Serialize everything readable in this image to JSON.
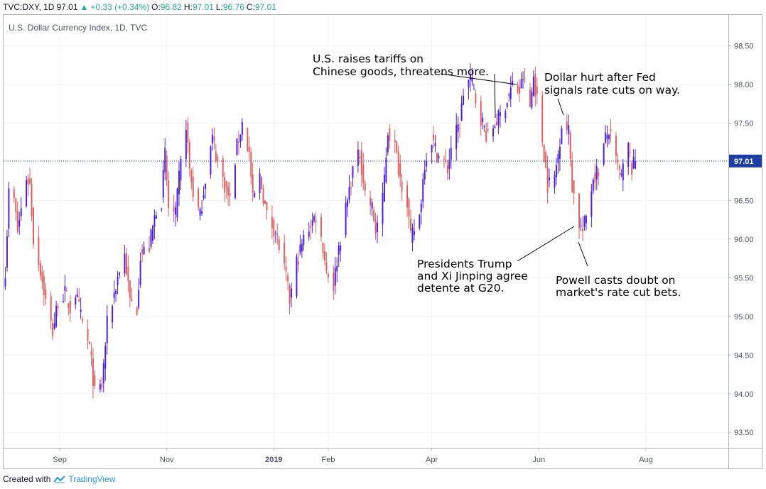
{
  "header": {
    "symbol": "TVC:DXY, 1D",
    "last": "97.01",
    "change": "+0.33 (+0.34%)",
    "o_label": "O:",
    "o": "96.82",
    "h_label": "H:",
    "h": "97.01",
    "l_label": "L:",
    "l": "96.76",
    "c_label": "C:",
    "c": "97.01"
  },
  "footer": {
    "created_with": "Created with",
    "brand": "TradingView"
  },
  "colors": {
    "up": "#4b20e6",
    "down": "#e05f5f",
    "last_price": "#1d3fa3",
    "grid": "#eef0f3",
    "brand": "#2196f3"
  },
  "chart_data": {
    "type": "candlestick",
    "title": "U.S. Dollar Currency Index, 1D, TVC",
    "ylim": [
      93.3,
      98.9
    ],
    "yticks": [
      93.5,
      94.0,
      94.5,
      95.0,
      95.5,
      96.0,
      96.5,
      97.0,
      97.5,
      98.0,
      98.5
    ],
    "ytick_labels": [
      "93.50",
      "94.00",
      "94.50",
      "95.00",
      "95.50",
      "96.00",
      "96.50",
      "97.00",
      "97.50",
      "98.00",
      "98.50"
    ],
    "last_price": 97.01,
    "last_price_label": "97.01",
    "xlim": [
      "2018-07-31",
      "2019-09-17"
    ],
    "xticks": [
      {
        "date": "2018-09-01",
        "label": "Sep"
      },
      {
        "date": "2018-11-01",
        "label": "Nov"
      },
      {
        "date": "2019-01-01",
        "label": "2019"
      },
      {
        "date": "2019-02-01",
        "label": "Feb"
      },
      {
        "date": "2019-04-01",
        "label": "Apr"
      },
      {
        "date": "2019-06-01",
        "label": "Jun"
      },
      {
        "date": "2019-08-01",
        "label": "Aug"
      }
    ],
    "anchors": [
      [
        "2018-08-01",
        95.6
      ],
      [
        "2018-08-03",
        96.6
      ],
      [
        "2018-08-06",
        96.5
      ],
      [
        "2018-08-08",
        96.1
      ],
      [
        "2018-08-13",
        96.8
      ],
      [
        "2018-08-15",
        96.7
      ],
      [
        "2018-08-17",
        96.0
      ],
      [
        "2018-08-21",
        95.6
      ],
      [
        "2018-08-24",
        95.2
      ],
      [
        "2018-08-28",
        94.8
      ],
      [
        "2018-08-31",
        95.2
      ],
      [
        "2018-09-04",
        95.3
      ],
      [
        "2018-09-07",
        95.1
      ],
      [
        "2018-09-10",
        95.3
      ],
      [
        "2018-09-14",
        94.9
      ],
      [
        "2018-09-18",
        94.6
      ],
      [
        "2018-09-21",
        94.0
      ],
      [
        "2018-09-25",
        94.1
      ],
      [
        "2018-09-28",
        94.9
      ],
      [
        "2018-10-02",
        95.3
      ],
      [
        "2018-10-05",
        95.6
      ],
      [
        "2018-10-08",
        95.8
      ],
      [
        "2018-10-11",
        95.2
      ],
      [
        "2018-10-15",
        95.1
      ],
      [
        "2018-10-17",
        95.8
      ],
      [
        "2018-10-22",
        95.9
      ],
      [
        "2018-10-26",
        96.4
      ],
      [
        "2018-10-29",
        96.5
      ],
      [
        "2018-10-31",
        97.1
      ],
      [
        "2018-11-02",
        96.4
      ],
      [
        "2018-11-06",
        96.3
      ],
      [
        "2018-11-08",
        96.8
      ],
      [
        "2018-11-12",
        97.5
      ],
      [
        "2018-11-14",
        96.9
      ],
      [
        "2018-11-16",
        96.6
      ],
      [
        "2018-11-20",
        96.3
      ],
      [
        "2018-11-23",
        96.8
      ],
      [
        "2018-11-27",
        97.3
      ],
      [
        "2018-11-30",
        97.0
      ],
      [
        "2018-12-04",
        96.7
      ],
      [
        "2018-12-07",
        96.5
      ],
      [
        "2018-12-11",
        97.2
      ],
      [
        "2018-12-14",
        97.5
      ],
      [
        "2018-12-18",
        97.1
      ],
      [
        "2018-12-20",
        96.5
      ],
      [
        "2018-12-24",
        96.8
      ],
      [
        "2018-12-28",
        96.3
      ],
      [
        "2019-01-02",
        96.1
      ],
      [
        "2019-01-04",
        95.9
      ],
      [
        "2019-01-08",
        95.5
      ],
      [
        "2019-01-10",
        95.2
      ],
      [
        "2019-01-14",
        95.7
      ],
      [
        "2019-01-18",
        96.0
      ],
      [
        "2019-01-22",
        96.2
      ],
      [
        "2019-01-25",
        96.3
      ],
      [
        "2019-01-29",
        95.9
      ],
      [
        "2019-01-31",
        95.6
      ],
      [
        "2019-02-04",
        95.4
      ],
      [
        "2019-02-07",
        95.9
      ],
      [
        "2019-02-12",
        96.5
      ],
      [
        "2019-02-15",
        96.9
      ],
      [
        "2019-02-19",
        97.1
      ],
      [
        "2019-02-22",
        96.6
      ],
      [
        "2019-02-26",
        96.4
      ],
      [
        "2019-02-28",
        96.1
      ],
      [
        "2019-03-04",
        96.5
      ],
      [
        "2019-03-07",
        97.4
      ],
      [
        "2019-03-11",
        97.2
      ],
      [
        "2019-03-14",
        96.8
      ],
      [
        "2019-03-18",
        96.5
      ],
      [
        "2019-03-20",
        96.0
      ],
      [
        "2019-03-25",
        96.3
      ],
      [
        "2019-03-28",
        97.0
      ],
      [
        "2019-04-01",
        97.3
      ],
      [
        "2019-04-04",
        97.1
      ],
      [
        "2019-04-08",
        97.0
      ],
      [
        "2019-04-10",
        96.9
      ],
      [
        "2019-04-12",
        97.2
      ],
      [
        "2019-04-17",
        97.5
      ],
      [
        "2019-04-19",
        97.9
      ],
      [
        "2019-04-23",
        98.1
      ],
      [
        "2019-04-26",
        97.8
      ],
      [
        "2019-04-30",
        97.5
      ],
      [
        "2019-05-03",
        97.3
      ],
      [
        "2019-05-07",
        97.5
      ],
      [
        "2019-05-10",
        97.6
      ],
      [
        "2019-05-14",
        97.8
      ],
      [
        "2019-05-17",
        98.0
      ],
      [
        "2019-05-21",
        97.9
      ],
      [
        "2019-05-23",
        98.1
      ],
      [
        "2019-05-27",
        97.7
      ],
      [
        "2019-05-29",
        98.1
      ],
      [
        "2019-05-31",
        97.8
      ],
      [
        "2019-06-04",
        97.1
      ],
      [
        "2019-06-06",
        96.7
      ],
      [
        "2019-06-10",
        96.8
      ],
      [
        "2019-06-12",
        97.1
      ],
      [
        "2019-06-14",
        97.5
      ],
      [
        "2019-06-18",
        97.4
      ],
      [
        "2019-06-20",
        96.7
      ],
      [
        "2019-06-24",
        96.2
      ],
      [
        "2019-06-26",
        96.1
      ],
      [
        "2019-06-28",
        96.3
      ],
      [
        "2019-07-02",
        96.8
      ],
      [
        "2019-07-05",
        96.9
      ],
      [
        "2019-07-09",
        97.3
      ],
      [
        "2019-07-11",
        97.4
      ],
      [
        "2019-07-15",
        97.0
      ],
      [
        "2019-07-18",
        96.8
      ],
      [
        "2019-07-22",
        97.2
      ],
      [
        "2019-07-24",
        96.9
      ],
      [
        "2019-07-26",
        97.01
      ]
    ],
    "annotations": [
      {
        "lines": [
          "U.S. raises tariffs on",
          "Chinese goods, threatens more."
        ]
      },
      {
        "lines": [
          "Dollar hurt after Fed",
          "signals rate cuts on way."
        ]
      },
      {
        "lines": [
          "Presidents Trump",
          "and Xi Jinping agree",
          "detente at G20."
        ]
      },
      {
        "lines": [
          "Powell casts doubt on",
          "market's rate cut bets."
        ]
      }
    ]
  }
}
